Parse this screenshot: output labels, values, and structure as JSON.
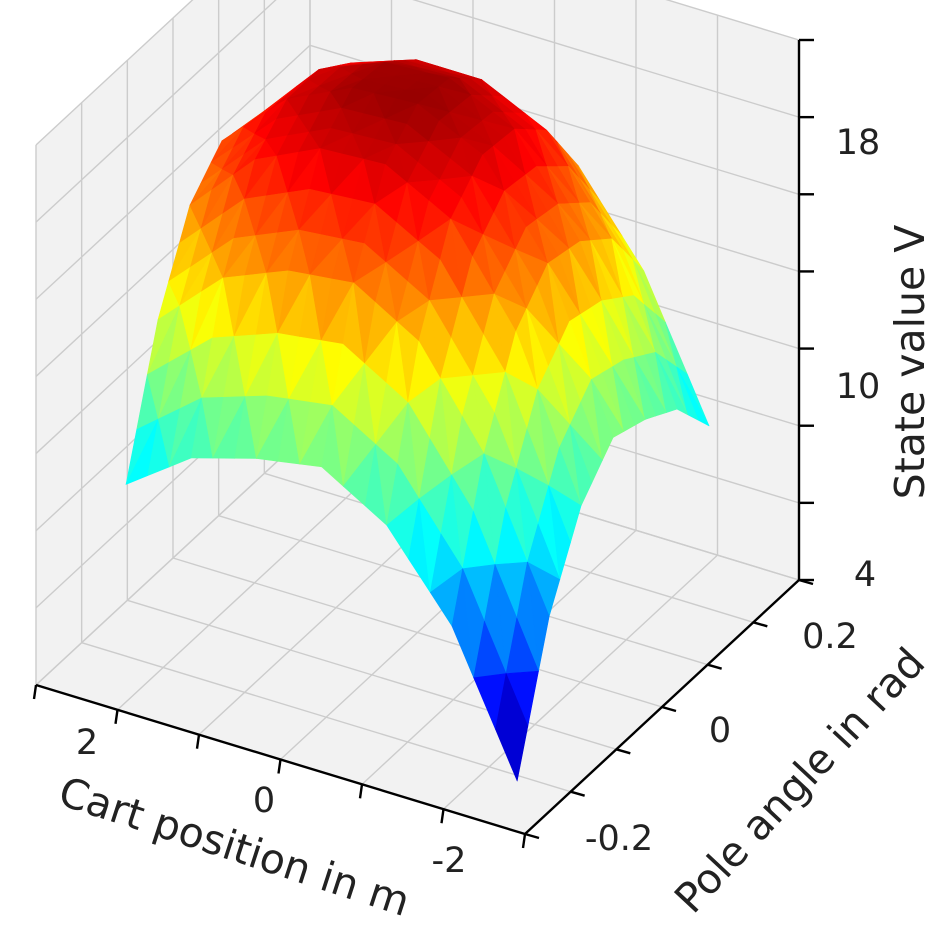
{
  "chart_data": {
    "type": "surface3d",
    "title": "",
    "xlabel": "Cart position in m",
    "ylabel": "Pole angle in rad",
    "zlabel": "State value V",
    "x_ticks": [
      {
        "value": 2,
        "label": "2"
      },
      {
        "value": 0,
        "label": "0"
      },
      {
        "value": -2,
        "label": "-2"
      }
    ],
    "y_ticks": [
      {
        "value": -0.2,
        "label": "-0.2"
      },
      {
        "value": 0,
        "label": "0"
      },
      {
        "value": 0.2,
        "label": "0.2"
      }
    ],
    "z_ticks": [
      {
        "value": 4,
        "label": "4"
      },
      {
        "value": 10,
        "label": "10"
      },
      {
        "value": 18,
        "label": "18"
      }
    ],
    "xlim": [
      -3,
      3
    ],
    "ylim": [
      -0.3,
      0.3
    ],
    "zlim": [
      4,
      18
    ],
    "grid": true,
    "colormap": "jet",
    "colors": {
      "pane": "#f2f2f2",
      "grid": "#cccccc",
      "axis": "#000000",
      "text": "#222222"
    },
    "surface": {
      "x": [
        -2.4,
        -1.6,
        -0.8,
        0,
        0.8,
        1.6,
        2.4
      ],
      "y": [
        -0.21,
        -0.14,
        -0.07,
        0,
        0.07,
        0.14,
        0.21
      ],
      "z": [
        [
          4.0,
          7.5,
          9.6,
          10.6,
          10.3,
          9.8,
          8.6
        ],
        [
          7.5,
          11.2,
          13.6,
          14.6,
          14.4,
          13.7,
          12.1
        ],
        [
          9.6,
          13.6,
          16.0,
          16.9,
          16.8,
          16.0,
          14.3
        ],
        [
          10.6,
          14.6,
          16.9,
          17.7,
          17.6,
          16.8,
          15.2
        ],
        [
          10.3,
          14.4,
          16.8,
          17.6,
          17.5,
          16.8,
          15.0
        ],
        [
          9.8,
          13.7,
          16.0,
          16.8,
          16.8,
          16.2,
          14.4
        ],
        [
          8.6,
          12.1,
          14.3,
          15.2,
          15.0,
          14.4,
          7.2
        ]
      ]
    }
  }
}
